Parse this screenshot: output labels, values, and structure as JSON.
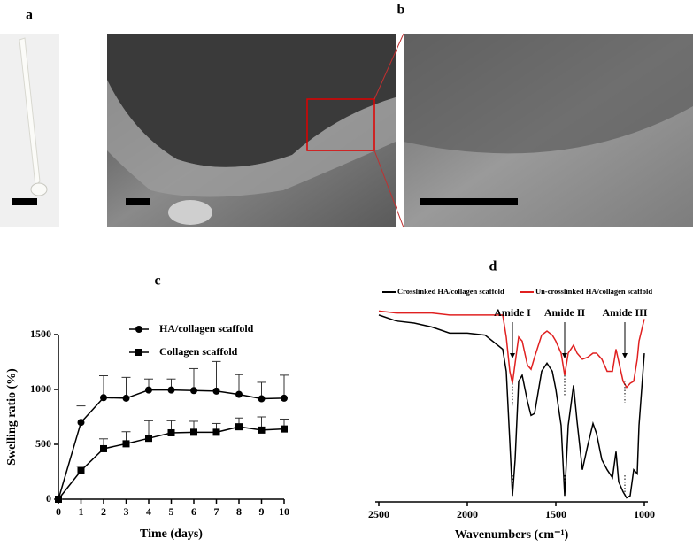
{
  "panel_labels": [
    "a",
    "b"
  ],
  "chart_data": [
    {
      "type": "line",
      "panel_label": "c",
      "x_label": "Time (days)",
      "y_label": "Swelling ratio (%)",
      "x": [
        0,
        1,
        2,
        3,
        4,
        5,
        6,
        7,
        8,
        9,
        10
      ],
      "xlim": [
        0,
        10
      ],
      "xticks": [
        0,
        1,
        2,
        3,
        4,
        5,
        6,
        7,
        8,
        9,
        10
      ],
      "ylim": [
        0,
        1500
      ],
      "yticks": [
        0,
        500,
        1000,
        1500
      ],
      "series": [
        {
          "name": "HA/collagen scaffold",
          "marker": "circle",
          "color": "#000000",
          "values": [
            0,
            700,
            925,
            920,
            995,
            995,
            990,
            985,
            955,
            915,
            920
          ],
          "errors": [
            0,
            150,
            200,
            190,
            100,
            100,
            200,
            270,
            180,
            150,
            210
          ]
        },
        {
          "name": "Collagen scaffold",
          "marker": "square",
          "color": "#000000",
          "values": [
            0,
            260,
            460,
            505,
            555,
            605,
            610,
            610,
            660,
            630,
            640
          ],
          "errors": [
            0,
            40,
            90,
            110,
            160,
            110,
            100,
            80,
            80,
            120,
            90
          ]
        }
      ]
    },
    {
      "type": "spectrum",
      "panel_label": "d",
      "x_label": "Wavenumbers (cm⁻¹)",
      "xlim": [
        2500,
        1000
      ],
      "xticks": [
        2500,
        2000,
        1500,
        1000
      ],
      "ylim": [
        0,
        100
      ],
      "x": [
        2500,
        2400,
        2300,
        2200,
        2100,
        2000,
        1900,
        1800,
        1780,
        1760,
        1745,
        1730,
        1710,
        1690,
        1660,
        1640,
        1620,
        1580,
        1550,
        1520,
        1500,
        1470,
        1450,
        1430,
        1400,
        1380,
        1350,
        1320,
        1290,
        1270,
        1240,
        1210,
        1180,
        1160,
        1145,
        1120,
        1100,
        1080,
        1060,
        1040,
        1030,
        1000
      ],
      "series": [
        {
          "name": "Crosslinked HA/collagen scaffold",
          "color": "#000000",
          "values": [
            93,
            90,
            89,
            87,
            84,
            84,
            83,
            76,
            65,
            30,
            3,
            21,
            60,
            63,
            50,
            43,
            44,
            65,
            69,
            65,
            56,
            38,
            3,
            38,
            58,
            40,
            16,
            28,
            39,
            34,
            21,
            16,
            12,
            25,
            10,
            5,
            2,
            3,
            16,
            14,
            38,
            74
          ]
        },
        {
          "name": "Un-crosslinked HA/collagen scaffold",
          "color": "#e02020",
          "values": [
            95,
            94,
            94,
            94,
            93,
            93,
            93,
            93,
            82,
            65,
            59,
            69,
            82,
            80,
            68,
            66,
            72,
            83,
            85,
            83,
            80,
            74,
            63,
            74,
            78,
            74,
            71,
            72,
            74,
            74,
            71,
            65,
            65,
            76,
            70,
            60,
            57,
            59,
            60,
            71,
            80,
            91
          ]
        }
      ],
      "annotations": [
        {
          "text": "Amide I",
          "x": 1745
        },
        {
          "text": "Amide II",
          "x": 1450
        },
        {
          "text": "Amide III",
          "x": 1110
        }
      ]
    }
  ]
}
